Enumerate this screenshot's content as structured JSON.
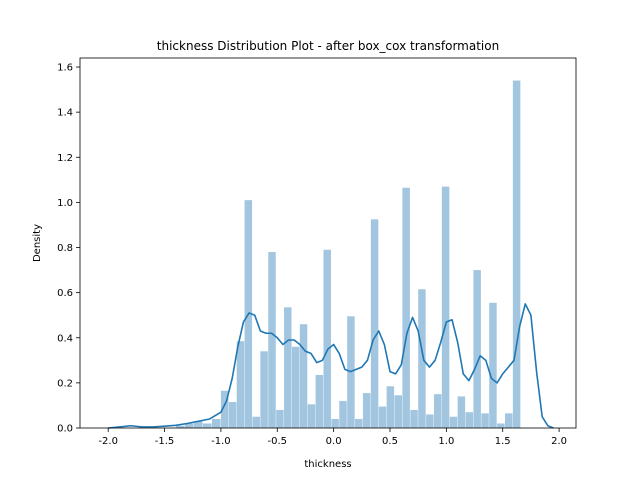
{
  "chart_data": {
    "type": "bar",
    "title": "thickness Distribution Plot - after box_cox transformation",
    "xlabel": "thickness",
    "ylabel": "Density",
    "xlim": [
      -2.25,
      2.15
    ],
    "ylim": [
      0,
      1.64
    ],
    "xticks": [
      "-2.0",
      "-1.5",
      "-1.0",
      "-0.5",
      "0.0",
      "0.5",
      "1.0",
      "1.5",
      "2.0"
    ],
    "xtick_values": [
      -2.0,
      -1.5,
      -1.0,
      -0.5,
      0.0,
      0.5,
      1.0,
      1.5,
      2.0
    ],
    "yticks": [
      "0.0",
      "0.2",
      "0.4",
      "0.6",
      "0.8",
      "1.0",
      "1.2",
      "1.4",
      "1.6"
    ],
    "ytick_values": [
      0.0,
      0.2,
      0.4,
      0.6,
      0.8,
      1.0,
      1.2,
      1.4,
      1.6
    ],
    "grid": false,
    "series": [
      {
        "kind": "histogram",
        "color": "#a3c6e0",
        "bins": [
          {
            "x0": -1.4,
            "x1": -1.32,
            "y": 0.01
          },
          {
            "x0": -1.32,
            "x1": -1.24,
            "y": 0.02
          },
          {
            "x0": -1.24,
            "x1": -1.16,
            "y": 0.03
          },
          {
            "x0": -1.16,
            "x1": -1.08,
            "y": 0.02
          },
          {
            "x0": -1.08,
            "x1": -1.0,
            "y": 0.04
          },
          {
            "x0": -1.0,
            "x1": -0.93,
            "y": 0.165
          },
          {
            "x0": -0.93,
            "x1": -0.86,
            "y": 0.115
          },
          {
            "x0": -0.86,
            "x1": -0.79,
            "y": 0.385
          },
          {
            "x0": -0.79,
            "x1": -0.72,
            "y": 1.01
          },
          {
            "x0": -0.72,
            "x1": -0.65,
            "y": 0.05
          },
          {
            "x0": -0.65,
            "x1": -0.58,
            "y": 0.34
          },
          {
            "x0": -0.58,
            "x1": -0.51,
            "y": 0.78
          },
          {
            "x0": -0.51,
            "x1": -0.44,
            "y": 0.08
          },
          {
            "x0": -0.44,
            "x1": -0.37,
            "y": 0.535
          },
          {
            "x0": -0.37,
            "x1": -0.3,
            "y": 0.36
          },
          {
            "x0": -0.3,
            "x1": -0.23,
            "y": 0.46
          },
          {
            "x0": -0.23,
            "x1": -0.16,
            "y": 0.105
          },
          {
            "x0": -0.16,
            "x1": -0.09,
            "y": 0.235
          },
          {
            "x0": -0.09,
            "x1": -0.02,
            "y": 0.79
          },
          {
            "x0": -0.02,
            "x1": 0.05,
            "y": 0.04
          },
          {
            "x0": 0.05,
            "x1": 0.12,
            "y": 0.12
          },
          {
            "x0": 0.12,
            "x1": 0.19,
            "y": 0.495
          },
          {
            "x0": 0.19,
            "x1": 0.26,
            "y": 0.04
          },
          {
            "x0": 0.26,
            "x1": 0.33,
            "y": 0.155
          },
          {
            "x0": 0.33,
            "x1": 0.4,
            "y": 0.925
          },
          {
            "x0": 0.4,
            "x1": 0.47,
            "y": 0.095
          },
          {
            "x0": 0.47,
            "x1": 0.54,
            "y": 0.185
          },
          {
            "x0": 0.54,
            "x1": 0.61,
            "y": 0.145
          },
          {
            "x0": 0.61,
            "x1": 0.68,
            "y": 1.065
          },
          {
            "x0": 0.68,
            "x1": 0.75,
            "y": 0.08
          },
          {
            "x0": 0.75,
            "x1": 0.82,
            "y": 0.615
          },
          {
            "x0": 0.82,
            "x1": 0.89,
            "y": 0.06
          },
          {
            "x0": 0.89,
            "x1": 0.96,
            "y": 0.15
          },
          {
            "x0": 0.96,
            "x1": 1.03,
            "y": 1.07
          },
          {
            "x0": 1.03,
            "x1": 1.1,
            "y": 0.05
          },
          {
            "x0": 1.1,
            "x1": 1.17,
            "y": 0.14
          },
          {
            "x0": 1.17,
            "x1": 1.24,
            "y": 0.07
          },
          {
            "x0": 1.24,
            "x1": 1.31,
            "y": 0.7
          },
          {
            "x0": 1.31,
            "x1": 1.38,
            "y": 0.065
          },
          {
            "x0": 1.38,
            "x1": 1.45,
            "y": 0.555
          },
          {
            "x0": 1.45,
            "x1": 1.52,
            "y": 0.02
          },
          {
            "x0": 1.52,
            "x1": 1.59,
            "y": 0.065
          },
          {
            "x0": 1.59,
            "x1": 1.66,
            "y": 1.54
          }
        ]
      },
      {
        "kind": "kde",
        "color": "#1f77b4",
        "x": [
          -2.0,
          -1.9,
          -1.8,
          -1.7,
          -1.6,
          -1.5,
          -1.4,
          -1.3,
          -1.2,
          -1.1,
          -1.0,
          -0.95,
          -0.9,
          -0.85,
          -0.8,
          -0.75,
          -0.7,
          -0.65,
          -0.6,
          -0.55,
          -0.5,
          -0.45,
          -0.4,
          -0.35,
          -0.3,
          -0.25,
          -0.2,
          -0.15,
          -0.1,
          -0.05,
          0.0,
          0.05,
          0.1,
          0.15,
          0.2,
          0.25,
          0.3,
          0.35,
          0.4,
          0.45,
          0.5,
          0.55,
          0.6,
          0.65,
          0.7,
          0.75,
          0.8,
          0.85,
          0.9,
          0.95,
          1.0,
          1.05,
          1.1,
          1.15,
          1.2,
          1.25,
          1.3,
          1.35,
          1.4,
          1.45,
          1.5,
          1.55,
          1.6,
          1.65,
          1.7,
          1.75,
          1.8,
          1.85,
          1.9,
          1.95
        ],
        "y": [
          0.0,
          0.005,
          0.01,
          0.005,
          0.005,
          0.008,
          0.012,
          0.02,
          0.03,
          0.04,
          0.07,
          0.12,
          0.22,
          0.36,
          0.47,
          0.51,
          0.5,
          0.43,
          0.42,
          0.42,
          0.4,
          0.37,
          0.39,
          0.39,
          0.37,
          0.34,
          0.33,
          0.29,
          0.3,
          0.35,
          0.37,
          0.33,
          0.26,
          0.25,
          0.26,
          0.27,
          0.3,
          0.39,
          0.43,
          0.37,
          0.25,
          0.24,
          0.28,
          0.42,
          0.49,
          0.43,
          0.3,
          0.27,
          0.3,
          0.38,
          0.47,
          0.48,
          0.38,
          0.24,
          0.21,
          0.26,
          0.32,
          0.3,
          0.22,
          0.2,
          0.24,
          0.27,
          0.3,
          0.45,
          0.55,
          0.5,
          0.25,
          0.05,
          0.01,
          0.0
        ]
      }
    ]
  }
}
